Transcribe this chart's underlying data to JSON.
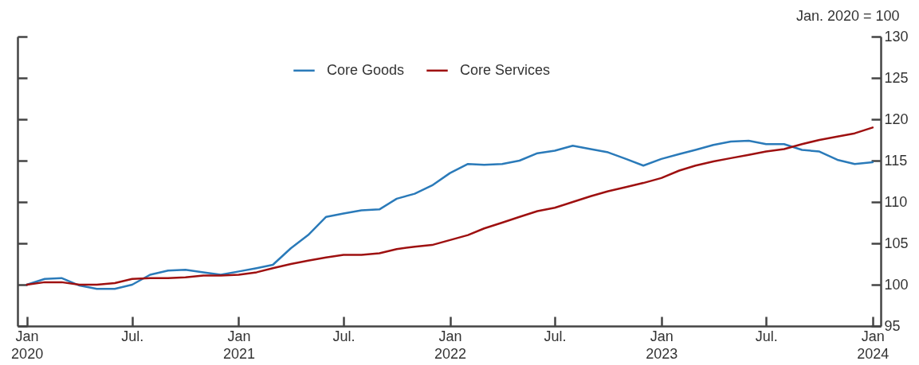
{
  "chart_data": {
    "type": "line",
    "ylabel": "Jan. 2020 = 100",
    "x": [
      "2020-01",
      "2020-02",
      "2020-03",
      "2020-04",
      "2020-05",
      "2020-06",
      "2020-07",
      "2020-08",
      "2020-09",
      "2020-10",
      "2020-11",
      "2020-12",
      "2021-01",
      "2021-02",
      "2021-03",
      "2021-04",
      "2021-05",
      "2021-06",
      "2021-07",
      "2021-08",
      "2021-09",
      "2021-10",
      "2021-11",
      "2021-12",
      "2022-01",
      "2022-02",
      "2022-03",
      "2022-04",
      "2022-05",
      "2022-06",
      "2022-07",
      "2022-08",
      "2022-09",
      "2022-10",
      "2022-11",
      "2022-12",
      "2023-01",
      "2023-02",
      "2023-03",
      "2023-04",
      "2023-05",
      "2023-06",
      "2023-07",
      "2023-08",
      "2023-09",
      "2023-10",
      "2023-11",
      "2023-12",
      "2024-01"
    ],
    "series": [
      {
        "name": "Core Goods",
        "color": "#2a7ab9",
        "values": [
          100,
          100.7,
          100.8,
          99.9,
          99.5,
          99.5,
          100.0,
          101.2,
          101.7,
          101.8,
          101.5,
          101.2,
          101.6,
          102.0,
          102.4,
          104.4,
          106.0,
          108.2,
          108.6,
          109.0,
          109.1,
          110.4,
          111.0,
          112.0,
          113.5,
          114.6,
          114.5,
          114.6,
          115.0,
          115.9,
          116.2,
          116.8,
          116.4,
          116.0,
          115.2,
          114.4,
          115.2,
          115.8,
          116.3,
          116.9,
          117.3,
          117.4,
          117.0,
          117.0,
          116.3,
          116.1,
          115.1,
          114.6,
          114.8
        ]
      },
      {
        "name": "Core Services",
        "color": "#9e1010",
        "values": [
          100,
          100.3,
          100.3,
          100.0,
          100.0,
          100.2,
          100.7,
          100.8,
          100.8,
          100.9,
          101.1,
          101.1,
          101.2,
          101.5,
          102.0,
          102.5,
          102.9,
          103.3,
          103.6,
          103.6,
          103.8,
          104.3,
          104.6,
          104.8,
          105.4,
          106.0,
          106.8,
          107.5,
          108.2,
          108.9,
          109.3,
          110.0,
          110.7,
          111.3,
          111.8,
          112.3,
          112.9,
          113.8,
          114.4,
          114.9,
          115.3,
          115.7,
          116.1,
          116.4,
          117.0,
          117.5,
          117.9,
          118.3,
          119.0
        ]
      }
    ],
    "xlim": [
      "2019-12-16",
      "2024-01-15"
    ],
    "xticks": [
      {
        "value": "2020-01",
        "label": "Jan\n2020"
      },
      {
        "value": "2020-07",
        "label": "Jul."
      },
      {
        "value": "2021-01",
        "label": "Jan\n2021"
      },
      {
        "value": "2021-07",
        "label": "Jul."
      },
      {
        "value": "2022-01",
        "label": "Jan\n2022"
      },
      {
        "value": "2022-07",
        "label": "Jul."
      },
      {
        "value": "2023-01",
        "label": "Jan\n2023"
      },
      {
        "value": "2023-07",
        "label": "Jul."
      },
      {
        "value": "2024-01",
        "label": "Jan\n2024"
      }
    ],
    "ylim": [
      95,
      130
    ],
    "yticks": [
      95,
      100,
      105,
      110,
      115,
      120,
      125,
      130
    ],
    "grid": false,
    "legend": "top",
    "line_style": "solid"
  }
}
